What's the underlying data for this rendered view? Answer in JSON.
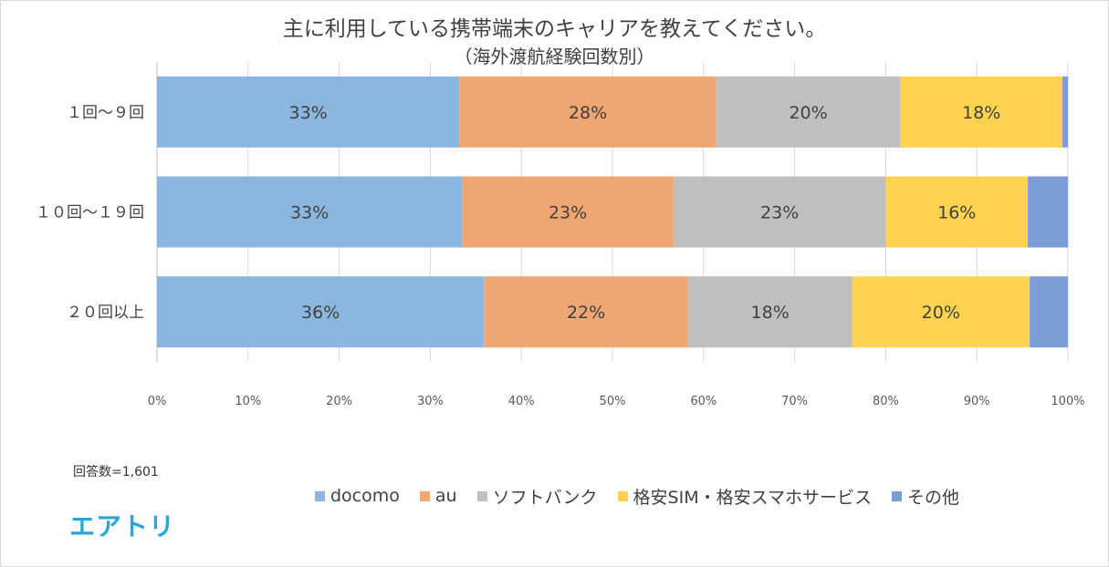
{
  "chart_data": {
    "type": "bar",
    "orientation": "horizontal",
    "stacked": true,
    "title": "主に利用している携帯端末のキャリアを教えてください。",
    "subtitle": "（海外渡航経験回数別）",
    "categories": [
      "１回～９回",
      "１０回～１９回",
      "２０回以上"
    ],
    "series": [
      {
        "name": "docomo",
        "values": [
          33.2,
          33.5,
          35.9
        ],
        "labels": [
          "33%",
          "33%",
          "36%"
        ],
        "color": "#8ab6df"
      },
      {
        "name": "au",
        "values": [
          28.2,
          23.2,
          22.4
        ],
        "labels": [
          "28%",
          "23%",
          "22%"
        ],
        "color": "#f0a672"
      },
      {
        "name": "ソフトバンク",
        "values": [
          20.2,
          23.3,
          18.0
        ],
        "labels": [
          "20%",
          "23%",
          "18%"
        ],
        "color": "#bfbfbf"
      },
      {
        "name": "格安SIM・格安スマホサービス",
        "values": [
          17.8,
          15.6,
          19.5
        ],
        "labels": [
          "18%",
          "16%",
          "20%"
        ],
        "color": "#ffd24f"
      },
      {
        "name": "その他",
        "values": [
          0.6,
          4.4,
          4.2
        ],
        "labels": [
          "",
          "",
          ""
        ],
        "color": "#7c9ed6"
      }
    ],
    "xlim": [
      0,
      100
    ],
    "xticks": [
      "0%",
      "10%",
      "20%",
      "30%",
      "40%",
      "50%",
      "60%",
      "70%",
      "80%",
      "90%",
      "100%"
    ],
    "grid": true,
    "legend": "bottom"
  },
  "note": "回答数=1,601",
  "logo_text": "エアトリ"
}
